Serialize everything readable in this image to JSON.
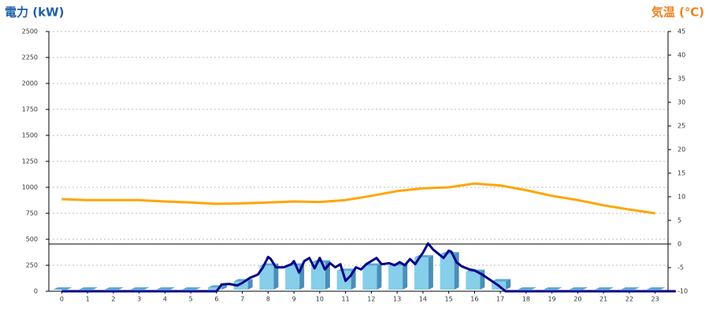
{
  "chart_data": {
    "type": "combo",
    "y_label": "電力 (kW)",
    "y2_label": "気温 (℃)",
    "categories": [
      "0",
      "1",
      "2",
      "3",
      "4",
      "5",
      "6",
      "7",
      "8",
      "9",
      "10",
      "11",
      "12",
      "13",
      "14",
      "15",
      "16",
      "17",
      "18",
      "19",
      "20",
      "21",
      "22",
      "23"
    ],
    "ylim": [
      0,
      2500
    ],
    "yticks": [
      0,
      250,
      500,
      750,
      1000,
      1250,
      1500,
      1750,
      2000,
      2250,
      2500
    ],
    "y2lim": [
      -10,
      45
    ],
    "y2ticks": [
      -10,
      -5,
      0,
      5,
      10,
      15,
      20,
      25,
      30,
      35,
      40,
      45
    ],
    "grid": true,
    "y2_zero_line": true,
    "series": [
      {
        "type": "bar",
        "color": "#87ceeb",
        "values": [
          0,
          0,
          0,
          0,
          0,
          0,
          20,
          80,
          230,
          230,
          260,
          180,
          230,
          230,
          310,
          340,
          170,
          80,
          0,
          0,
          0,
          0,
          0,
          0
        ]
      },
      {
        "type": "line",
        "color": "#00008b",
        "x": [
          0,
          6,
          6.2,
          6.5,
          6.8,
          7.0,
          7.3,
          7.6,
          7.8,
          8.0,
          8.1,
          8.3,
          8.6,
          8.9,
          9.0,
          9.2,
          9.4,
          9.6,
          9.8,
          10.0,
          10.2,
          10.4,
          10.6,
          10.8,
          11.0,
          11.2,
          11.4,
          11.6,
          11.8,
          12.0,
          12.2,
          12.4,
          12.7,
          12.9,
          13.1,
          13.3,
          13.5,
          13.7,
          13.8,
          14.0,
          14.2,
          14.4,
          14.6,
          14.8,
          15.0,
          15.1,
          15.3,
          15.5,
          15.8,
          16.0,
          16.3,
          16.6,
          16.9,
          17.2,
          23.8
        ],
        "values": [
          0,
          0,
          65,
          70,
          55,
          80,
          130,
          160,
          230,
          330,
          310,
          230,
          230,
          260,
          290,
          180,
          290,
          320,
          220,
          320,
          210,
          270,
          230,
          260,
          100,
          150,
          230,
          210,
          260,
          290,
          320,
          260,
          270,
          250,
          280,
          250,
          310,
          260,
          300,
          370,
          460,
          400,
          360,
          320,
          390,
          380,
          280,
          240,
          210,
          200,
          160,
          110,
          60,
          0,
          0
        ]
      },
      {
        "type": "line",
        "axis": "y2",
        "color": "#ffa500",
        "values": [
          9.5,
          9.3,
          9.3,
          9.3,
          9.0,
          8.8,
          8.5,
          8.6,
          8.8,
          9.0,
          8.9,
          9.3,
          10.2,
          11.2,
          11.8,
          12.0,
          12.8,
          12.4,
          11.4,
          10.2,
          9.3,
          8.2,
          7.3,
          6.5
        ]
      }
    ]
  }
}
